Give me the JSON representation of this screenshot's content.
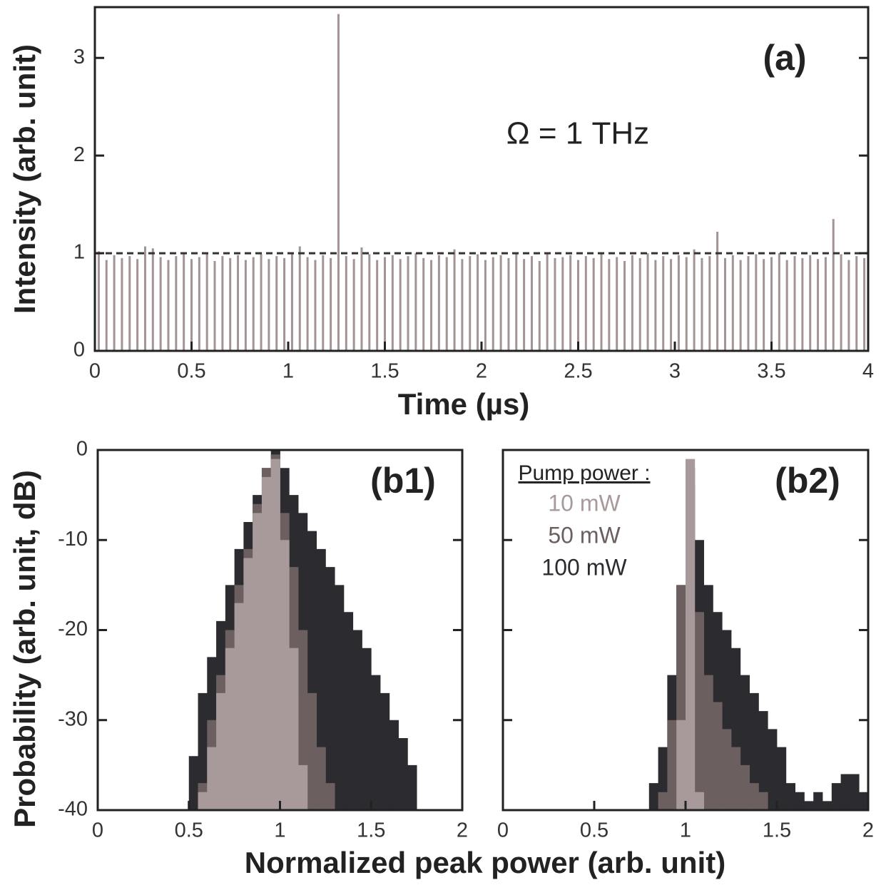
{
  "chart_data": [
    {
      "type": "stem",
      "panel_label": "(a)",
      "annotation": "Ω = 1  THz",
      "xlabel": "Time (µs)",
      "ylabel": "Intensity (arb. unit)",
      "color": "#a39494",
      "reference_line": 1,
      "x": [
        0.02,
        0.06,
        0.1,
        0.14,
        0.18,
        0.22,
        0.26,
        0.3,
        0.34,
        0.38,
        0.42,
        0.46,
        0.5,
        0.54,
        0.58,
        0.62,
        0.66,
        0.7,
        0.74,
        0.78,
        0.82,
        0.86,
        0.9,
        0.94,
        0.98,
        1.02,
        1.06,
        1.1,
        1.14,
        1.18,
        1.22,
        1.26,
        1.3,
        1.34,
        1.38,
        1.42,
        1.46,
        1.5,
        1.54,
        1.58,
        1.62,
        1.66,
        1.7,
        1.74,
        1.78,
        1.82,
        1.86,
        1.9,
        1.94,
        1.98,
        2.02,
        2.06,
        2.1,
        2.14,
        2.18,
        2.22,
        2.26,
        2.3,
        2.34,
        2.38,
        2.42,
        2.46,
        2.5,
        2.54,
        2.58,
        2.62,
        2.66,
        2.7,
        2.74,
        2.78,
        2.82,
        2.86,
        2.9,
        2.94,
        2.98,
        3.02,
        3.06,
        3.1,
        3.14,
        3.18,
        3.22,
        3.26,
        3.3,
        3.34,
        3.38,
        3.42,
        3.46,
        3.5,
        3.54,
        3.58,
        3.62,
        3.66,
        3.7,
        3.74,
        3.78,
        3.82,
        3.86,
        3.9,
        3.94,
        3.98
      ],
      "values": [
        1.02,
        0.93,
        0.98,
        0.95,
        0.97,
        0.94,
        1.07,
        1.05,
        0.96,
        0.93,
        0.97,
        0.99,
        0.94,
        0.96,
        1.0,
        0.92,
        0.97,
        0.95,
        0.98,
        0.93,
        0.96,
        0.99,
        0.94,
        0.97,
        0.95,
        1.0,
        1.07,
        0.96,
        0.93,
        0.98,
        0.95,
        3.45,
        0.97,
        0.94,
        1.06,
        0.99,
        0.93,
        0.96,
        0.98,
        0.94,
        0.97,
        1.0,
        0.95,
        0.93,
        0.98,
        0.96,
        1.04,
        0.94,
        0.97,
        0.99,
        0.93,
        0.96,
        0.98,
        0.95,
        1.0,
        0.94,
        0.97,
        0.92,
        0.99,
        0.95,
        0.96,
        0.98,
        0.93,
        0.97,
        0.95,
        0.99,
        0.94,
        0.96,
        0.92,
        0.98,
        0.95,
        1.0,
        0.93,
        0.97,
        0.94,
        0.98,
        0.96,
        1.04,
        0.95,
        0.97,
        1.22,
        0.95,
        0.98,
        0.93,
        0.97,
        0.99,
        0.94,
        0.96,
        1.0,
        0.93,
        0.97,
        0.95,
        0.98,
        0.94,
        0.96,
        1.35,
        0.99,
        0.93,
        0.97,
        0.95
      ],
      "xlim": [
        0,
        4
      ],
      "ylim": [
        0,
        3.52
      ],
      "xticks": [
        0,
        0.5,
        1,
        1.5,
        2,
        2.5,
        3,
        3.5,
        4
      ],
      "yticks": [
        0,
        1,
        2,
        3
      ]
    },
    {
      "type": "histogram",
      "panel_label": "(b1)",
      "xlabel": "Normalized peak power (arb. unit)",
      "ylabel": "Probability (arb. unit, dB)",
      "bins": [
        0.5,
        0.55,
        0.6,
        0.65,
        0.7,
        0.75,
        0.8,
        0.85,
        0.9,
        0.95,
        1.0,
        1.05,
        1.1,
        1.15,
        1.2,
        1.25,
        1.3,
        1.35,
        1.4,
        1.45,
        1.5,
        1.55,
        1.6,
        1.65,
        1.7,
        1.75
      ],
      "series": [
        {
          "name": "100 mW",
          "color": "#2b2b30",
          "values": [
            -34,
            -27,
            -23,
            -19,
            -15,
            -11,
            -8,
            -5,
            -2,
            0,
            -2,
            -5,
            -7,
            -9,
            -11,
            -13,
            -15,
            -18,
            -20,
            -22,
            -25,
            -27,
            -30,
            -32,
            -35
          ]
        },
        {
          "name": "50 mW",
          "color": "#6c5f5f",
          "values": [
            null,
            -37,
            -30,
            -25,
            -20,
            -15,
            -11,
            -6,
            -2,
            -0.5,
            -7,
            -13,
            -20,
            -27,
            -33,
            -37,
            null,
            null,
            null,
            null,
            null,
            null,
            null,
            null,
            null
          ]
        },
        {
          "name": "10 mW",
          "color": "#a89a9a",
          "values": [
            null,
            -38,
            -33,
            -27,
            -22,
            -17,
            -12,
            -7,
            -3,
            -1,
            -10,
            -22,
            -35,
            null,
            null,
            null,
            null,
            null,
            null,
            null,
            null,
            null,
            null,
            null,
            null
          ]
        }
      ],
      "xlim": [
        0,
        2
      ],
      "ylim": [
        -40,
        0
      ],
      "xticks": [
        0,
        0.5,
        1,
        1.5,
        2
      ],
      "yticks": [
        0,
        -10,
        -20,
        -30,
        -40
      ]
    },
    {
      "type": "histogram",
      "panel_label": "(b2)",
      "legend_title": "Pump power :",
      "legend": "top-left",
      "bins": [
        0.8,
        0.85,
        0.9,
        0.95,
        1.0,
        1.05,
        1.1,
        1.15,
        1.2,
        1.25,
        1.3,
        1.35,
        1.4,
        1.45,
        1.5,
        1.55,
        1.6,
        1.65,
        1.7,
        1.75,
        1.8,
        1.85,
        1.9,
        1.95,
        2.0
      ],
      "series": [
        {
          "name": "100 mW",
          "color": "#2b2b30",
          "values": [
            -37,
            -33,
            -25,
            -15,
            -2,
            -10,
            -15,
            -18,
            -20,
            -22,
            -25,
            -27,
            -29,
            -31,
            -33,
            -37,
            -38,
            -39,
            -38,
            -39,
            -37,
            -36,
            -36,
            -38
          ]
        },
        {
          "name": "50 mW",
          "color": "#6c5f5f",
          "values": [
            null,
            -38,
            -30,
            -15,
            -4,
            -18,
            -25,
            -28,
            -31,
            -33,
            -35,
            -37,
            -38,
            null,
            null,
            null,
            null,
            null,
            null,
            null,
            null,
            null,
            null,
            null
          ]
        },
        {
          "name": "10 mW",
          "color": "#a89a9a",
          "values": [
            null,
            null,
            null,
            -30,
            -1,
            -38,
            null,
            null,
            null,
            null,
            null,
            null,
            null,
            null,
            null,
            null,
            null,
            null,
            null,
            null,
            null,
            null,
            null,
            null
          ]
        }
      ],
      "xlim": [
        0,
        2
      ],
      "ylim": [
        -40,
        0
      ],
      "xticks": [
        0,
        0.5,
        1,
        1.5,
        2
      ],
      "yticks": [
        0,
        -10,
        -20,
        -30,
        -40
      ]
    }
  ]
}
